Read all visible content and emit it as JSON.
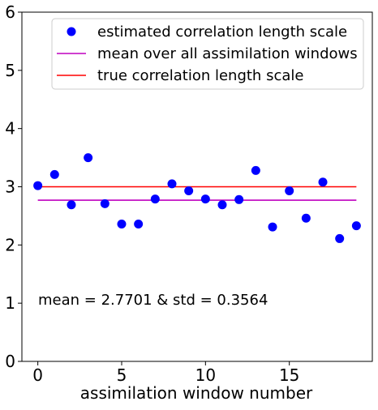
{
  "chart_data": {
    "type": "scatter",
    "title": "",
    "xlabel": "assimilation window number",
    "ylabel": "",
    "xlim": [
      -0.95,
      19.95
    ],
    "ylim": [
      0,
      6
    ],
    "x_ticks": [
      0,
      5,
      10,
      15
    ],
    "y_ticks": [
      0,
      1,
      2,
      3,
      4,
      5,
      6
    ],
    "grid": false,
    "legend_position": "top-right",
    "annotation": "mean = 2.7701 & std = 0.3564",
    "series": [
      {
        "name": "estimated correlation length scale",
        "kind": "markers",
        "color": "#0000ff",
        "x": [
          0,
          1,
          2,
          3,
          4,
          5,
          6,
          7,
          8,
          9,
          10,
          11,
          12,
          13,
          14,
          15,
          16,
          17,
          18,
          19
        ],
        "y": [
          3.02,
          3.21,
          2.69,
          3.5,
          2.71,
          2.36,
          2.36,
          2.79,
          3.05,
          2.93,
          2.79,
          2.69,
          2.78,
          3.28,
          2.31,
          2.93,
          2.46,
          3.08,
          2.11,
          2.33
        ]
      },
      {
        "name": "mean over all assimilation windows",
        "kind": "line",
        "color": "#bf00bf",
        "x": [
          0,
          19
        ],
        "y": [
          2.7701,
          2.7701
        ]
      },
      {
        "name": "true correlation length scale",
        "kind": "line",
        "color": "#ff0000",
        "x": [
          0,
          19
        ],
        "y": [
          3.0,
          3.0
        ]
      }
    ]
  }
}
